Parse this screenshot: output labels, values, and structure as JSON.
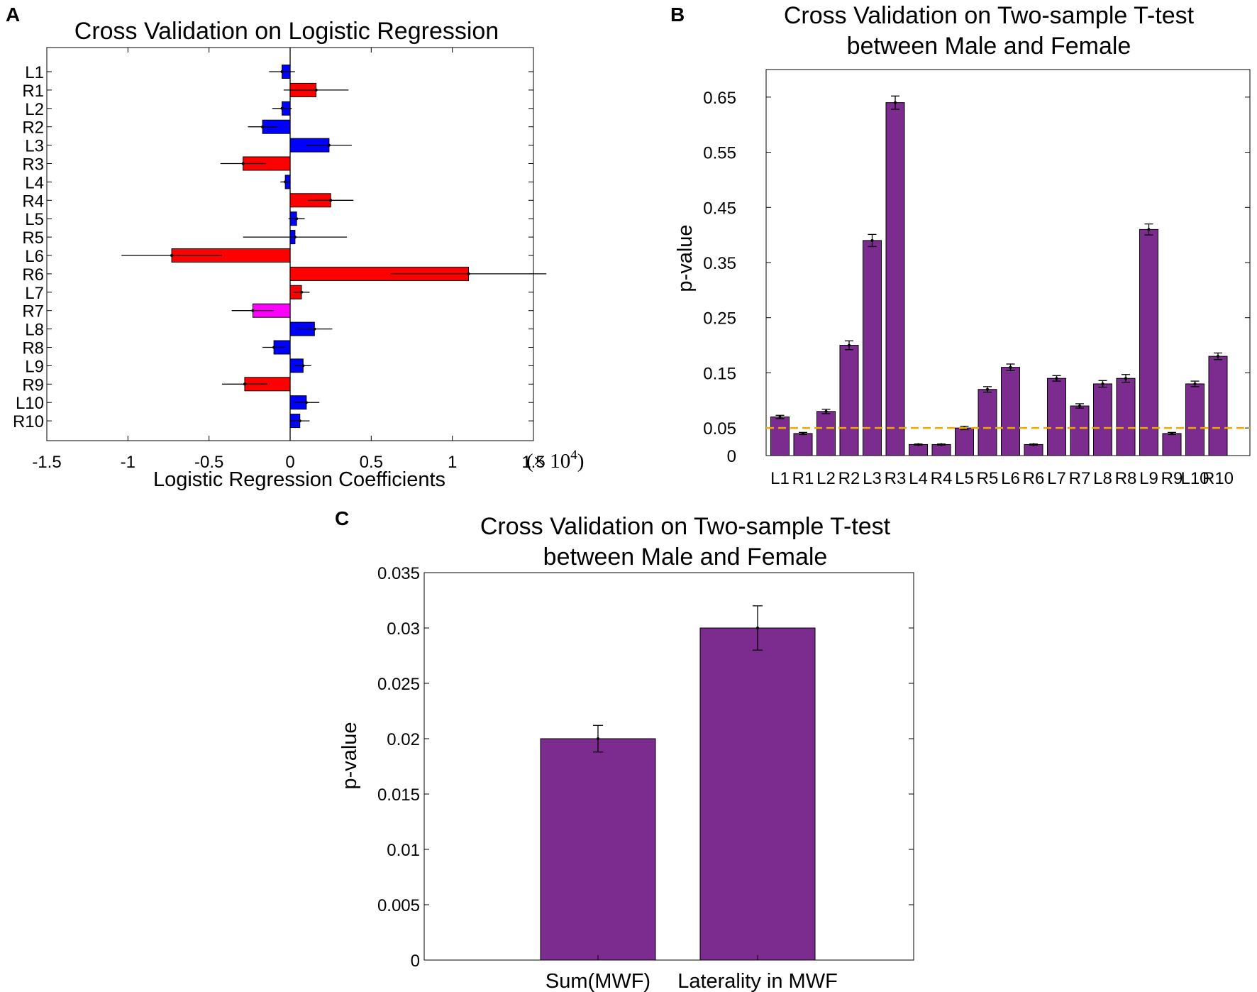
{
  "panels": {
    "a": {
      "letter": "A"
    },
    "b": {
      "letter": "B"
    },
    "c": {
      "letter": "C"
    }
  },
  "chart_data": [
    {
      "type": "bar",
      "orientation": "horizontal",
      "title": "Cross Validation on Logistic Regression",
      "xlabel": "Logistic Regression Coefficients",
      "xlabel_multiplier": "(× 10",
      "xlabel_multiplier_exp": "4",
      "xlabel_multiplier_close": ")",
      "xlim": [
        -1.5,
        1.5
      ],
      "xticks": [
        -1.5,
        -1,
        -0.5,
        0,
        0.5,
        1,
        1.5
      ],
      "xtick_labels": [
        "-1.5",
        "-1",
        "-0.5",
        "0",
        "0.5",
        "1",
        "1.5"
      ],
      "categories": [
        "L1",
        "R1",
        "L2",
        "R2",
        "L3",
        "R3",
        "L4",
        "R4",
        "L5",
        "R5",
        "L6",
        "R6",
        "L7",
        "R7",
        "L8",
        "R8",
        "L9",
        "R9",
        "L10",
        "R10"
      ],
      "values": [
        -0.05,
        0.16,
        -0.05,
        -0.17,
        0.24,
        -0.29,
        -0.03,
        0.25,
        0.04,
        0.03,
        -0.73,
        1.1,
        0.07,
        -0.23,
        0.15,
        -0.1,
        0.08,
        -0.28,
        0.1,
        0.06
      ],
      "errors": [
        0.08,
        0.2,
        0.06,
        0.09,
        0.14,
        0.14,
        0.03,
        0.14,
        0.05,
        0.32,
        0.31,
        0.48,
        0.05,
        0.13,
        0.11,
        0.07,
        0.05,
        0.14,
        0.08,
        0.06
      ],
      "colors": [
        "#0000ff",
        "#ff0000",
        "#0000ff",
        "#0000ff",
        "#0000ff",
        "#ff0000",
        "#0000ff",
        "#ff0000",
        "#0000ff",
        "#0000ff",
        "#ff0000",
        "#ff0000",
        "#ff0000",
        "#ff00ff",
        "#0000ff",
        "#0000ff",
        "#0000ff",
        "#ff0000",
        "#0000ff",
        "#0000ff"
      ]
    },
    {
      "type": "bar",
      "title_lines": [
        "Cross Validation on Two-sample T-test",
        "between Male and Female"
      ],
      "ylabel": "p-value",
      "ylim": [
        0,
        0.7
      ],
      "yticks": [
        0,
        0.05,
        0.15,
        0.25,
        0.35,
        0.45,
        0.55,
        0.65
      ],
      "ytick_labels": [
        "0",
        "0.05",
        "0.15",
        "0.25",
        "0.35",
        "0.45",
        "0.55",
        "0.65"
      ],
      "categories": [
        "L1",
        "R1",
        "L2",
        "R2",
        "L3",
        "R3",
        "L4",
        "R4",
        "L5",
        "R5",
        "L6",
        "R6",
        "L7",
        "R7",
        "L8",
        "R8",
        "L9",
        "R9",
        "L10",
        "R10"
      ],
      "values": [
        0.07,
        0.04,
        0.08,
        0.2,
        0.39,
        0.64,
        0.02,
        0.02,
        0.05,
        0.12,
        0.16,
        0.02,
        0.14,
        0.09,
        0.13,
        0.14,
        0.41,
        0.04,
        0.13,
        0.18
      ],
      "errors": [
        0.003,
        0.002,
        0.004,
        0.008,
        0.011,
        0.012,
        0.001,
        0.001,
        0.003,
        0.005,
        0.006,
        0.001,
        0.005,
        0.004,
        0.006,
        0.007,
        0.01,
        0.002,
        0.005,
        0.006
      ],
      "bar_color": "#7b2c8e",
      "reference_line": {
        "y": 0.05,
        "color": "#f0a800",
        "style": "dashed"
      }
    },
    {
      "type": "bar",
      "title_lines": [
        "Cross Validation on Two-sample T-test",
        "between Male and Female"
      ],
      "ylabel": "p-value",
      "ylim": [
        0,
        0.035
      ],
      "yticks": [
        0,
        0.005,
        0.01,
        0.015,
        0.02,
        0.025,
        0.03,
        0.035
      ],
      "ytick_labels": [
        "0",
        "0.005",
        "0.01",
        "0.015",
        "0.02",
        "0.025",
        "0.03",
        "0.035"
      ],
      "categories": [
        "Sum(MWF)",
        "Laterality in MWF"
      ],
      "values": [
        0.02,
        0.03
      ],
      "errors": [
        0.0012,
        0.002
      ],
      "bar_color": "#7b2c8e"
    }
  ]
}
